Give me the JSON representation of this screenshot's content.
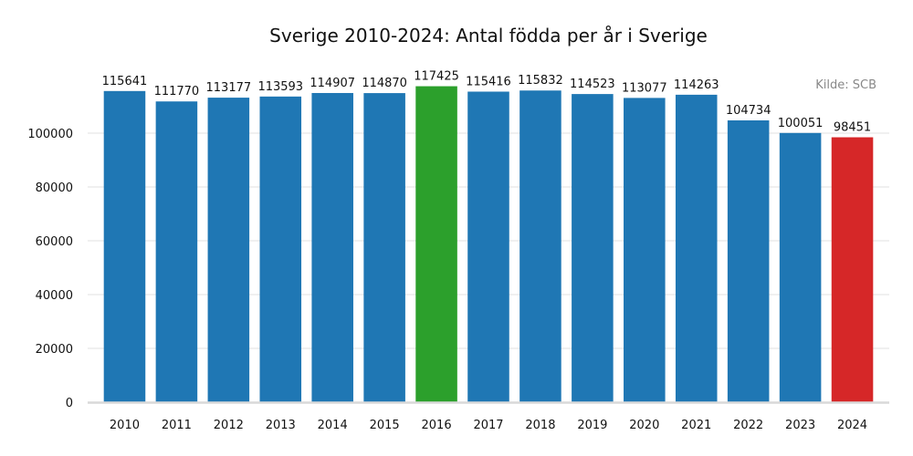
{
  "chart_data": {
    "type": "bar",
    "title": "Sverige 2010-2024: Antal födda per år i Sverige",
    "source": "Kilde: SCB",
    "xlabel": "",
    "ylabel": "",
    "categories": [
      "2010",
      "2011",
      "2012",
      "2013",
      "2014",
      "2015",
      "2016",
      "2017",
      "2018",
      "2019",
      "2020",
      "2021",
      "2022",
      "2023",
      "2024"
    ],
    "values": [
      115641,
      111770,
      113177,
      113593,
      114907,
      114870,
      117425,
      115416,
      115832,
      114523,
      113077,
      114263,
      104734,
      100051,
      98451
    ],
    "value_labels": [
      "115641",
      "111770",
      "113177",
      "113593",
      "114907",
      "114870",
      "117425",
      "115416",
      "115832",
      "114523",
      "113077",
      "114263",
      "104734",
      "100051",
      "98451"
    ],
    "colors": [
      "#1f77b4",
      "#1f77b4",
      "#1f77b4",
      "#1f77b4",
      "#1f77b4",
      "#1f77b4",
      "#2ca02c",
      "#1f77b4",
      "#1f77b4",
      "#1f77b4",
      "#1f77b4",
      "#1f77b4",
      "#1f77b4",
      "#1f77b4",
      "#d62728"
    ],
    "ylim": [
      0,
      121000
    ],
    "yticks": [
      0,
      20000,
      40000,
      60000,
      80000,
      100000
    ],
    "ytick_labels": [
      "0",
      "20000",
      "40000",
      "60000",
      "80000",
      "100000"
    ],
    "grid": true,
    "legend": false
  }
}
